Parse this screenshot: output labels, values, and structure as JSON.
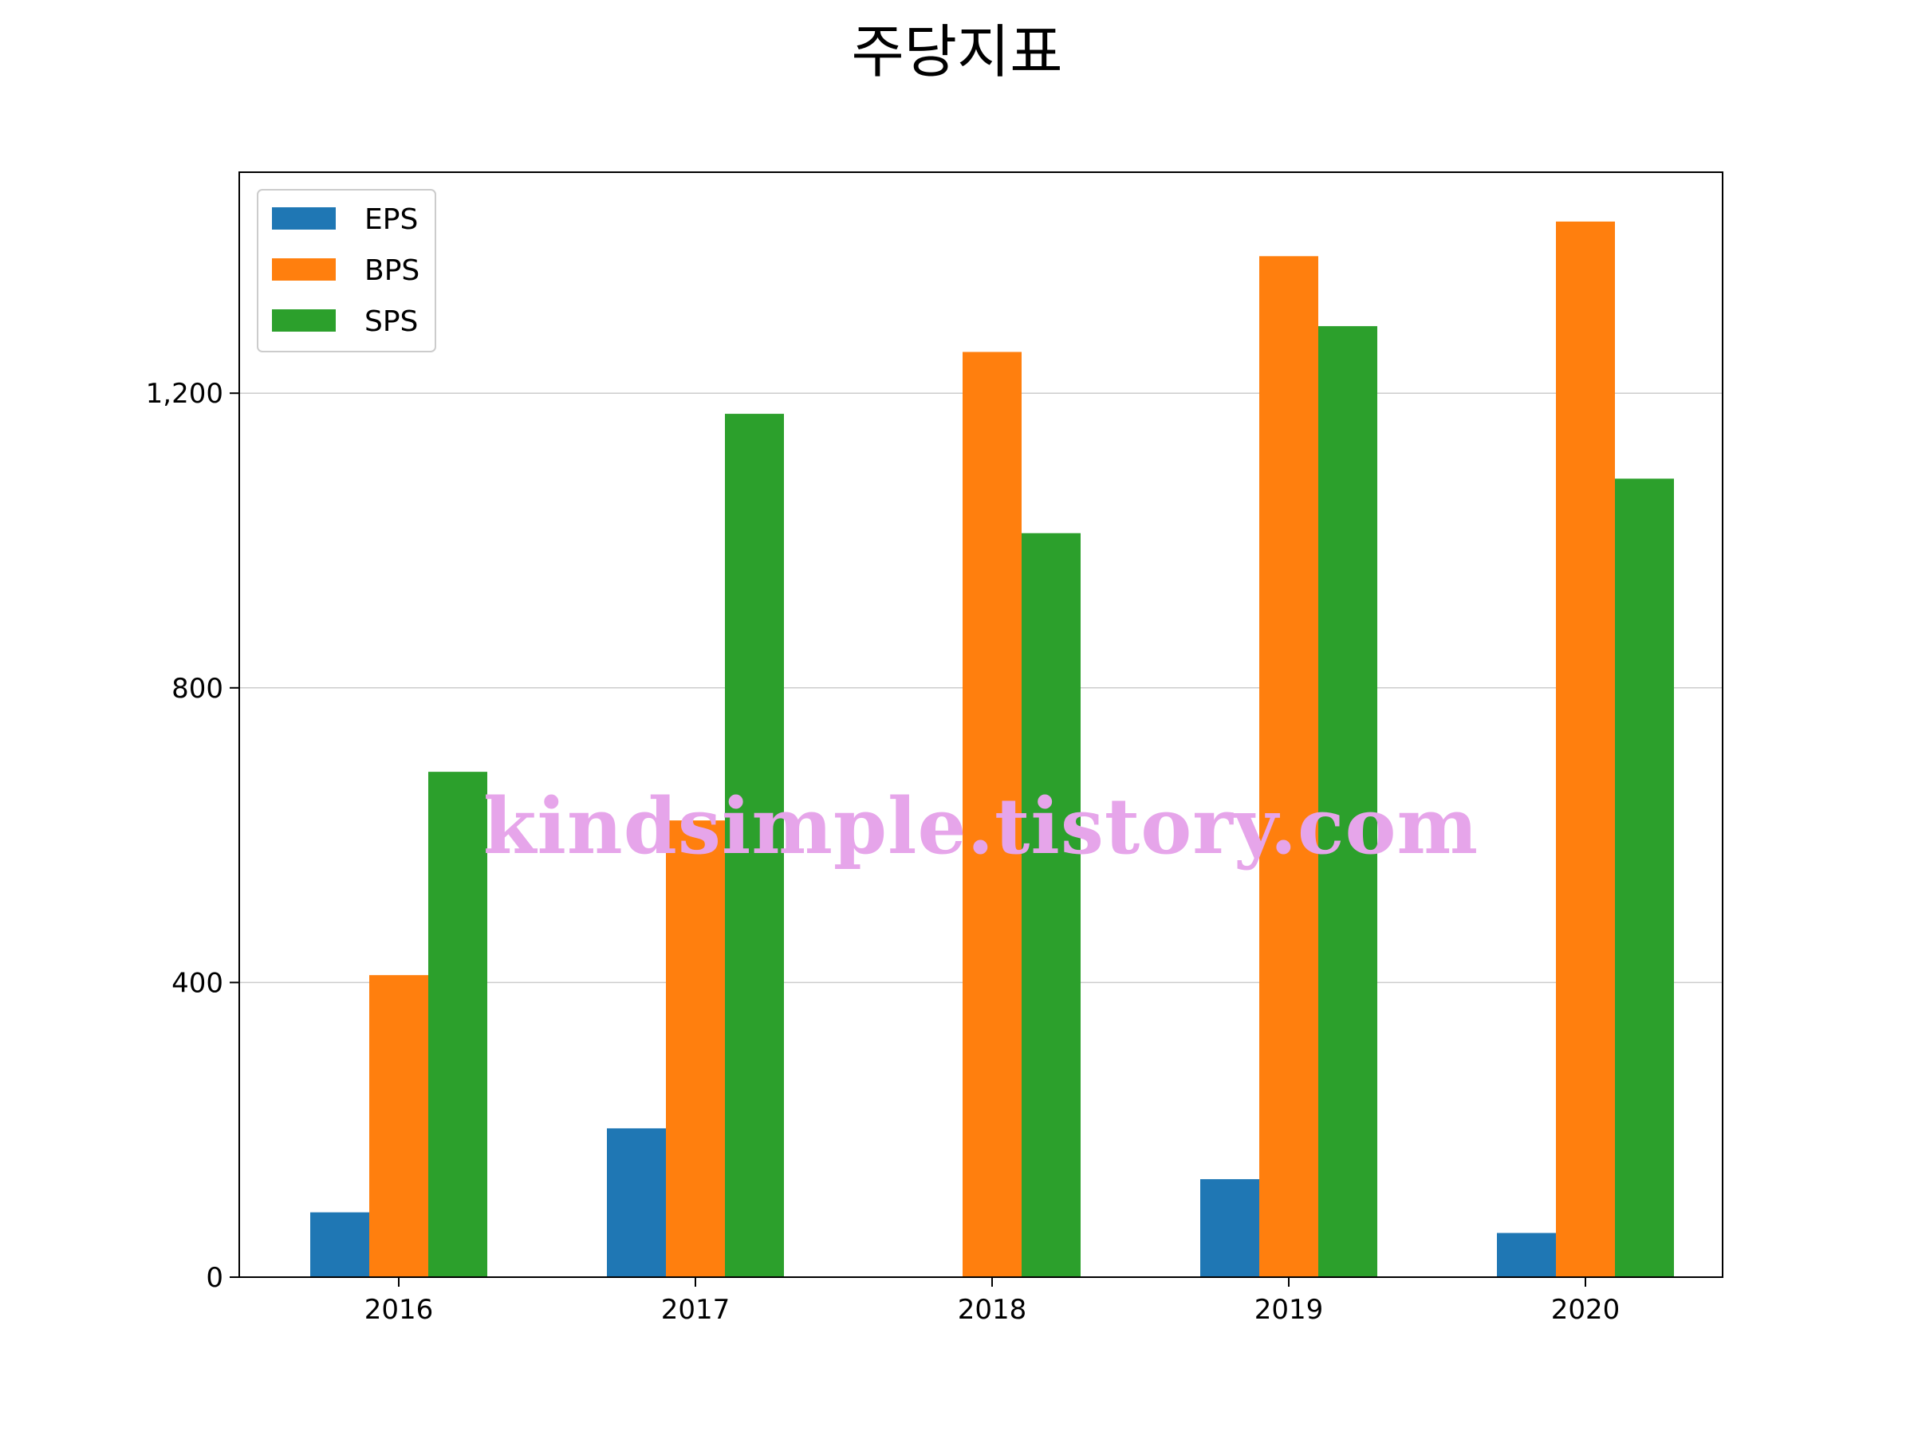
{
  "chart_data": {
    "type": "bar",
    "title": "주당지표",
    "xlabel": "",
    "ylabel": "",
    "categories": [
      "2016",
      "2017",
      "2018",
      "2019",
      "2020"
    ],
    "series": [
      {
        "name": "EPS",
        "color": "#1f77b4",
        "values": [
          88,
          202,
          0,
          133,
          60
        ]
      },
      {
        "name": "BPS",
        "color": "#ff7f0e",
        "values": [
          410,
          620,
          1256,
          1386,
          1433
        ]
      },
      {
        "name": "SPS",
        "color": "#2ca02c",
        "values": [
          686,
          1172,
          1010,
          1291,
          1084
        ]
      }
    ],
    "ylim": [
      0,
      1500
    ],
    "yticks": [
      0,
      400,
      800,
      1200
    ],
    "ytick_labels": [
      "0",
      "400",
      "800",
      "1,200"
    ],
    "grid": "y",
    "legend_position": "top-left",
    "watermark": "kindsimple.tistory.com"
  }
}
